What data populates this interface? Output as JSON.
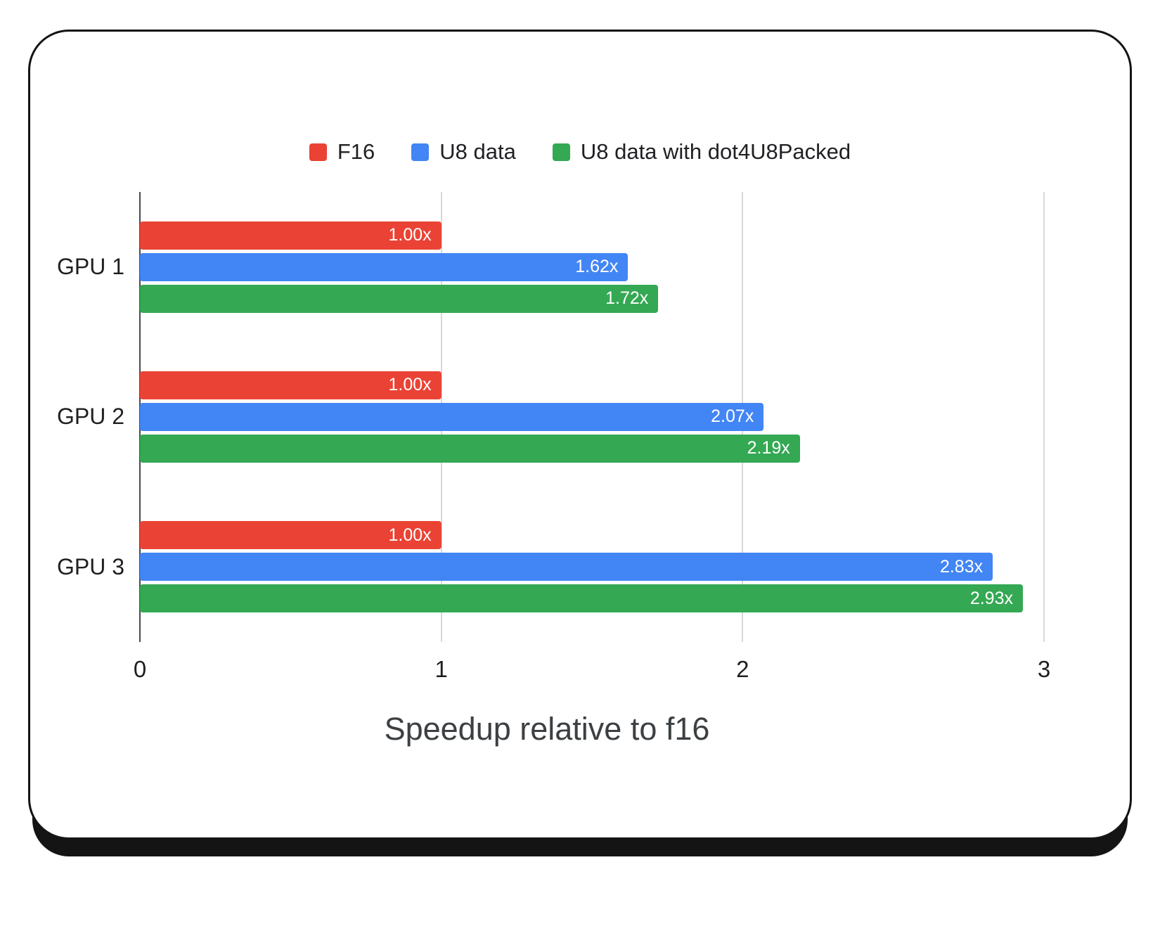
{
  "chart_data": {
    "type": "bar",
    "orientation": "horizontal",
    "title": "",
    "xlabel": "Speedup relative to f16",
    "ylabel": "",
    "categories": [
      "GPU 1",
      "GPU 2",
      "GPU 3"
    ],
    "series": [
      {
        "name": "F16",
        "color": "#EA4335",
        "values": [
          1.0,
          1.0,
          1.0
        ],
        "labels": [
          "1.00x",
          "1.00x",
          "1.00x"
        ]
      },
      {
        "name": "U8 data",
        "color": "#4285F4",
        "values": [
          1.62,
          2.07,
          2.83
        ],
        "labels": [
          "1.62x",
          "2.07x",
          "2.83x"
        ]
      },
      {
        "name": "U8 data with dot4U8Packed",
        "color": "#34A853",
        "values": [
          1.72,
          2.19,
          2.93
        ],
        "labels": [
          "1.72x",
          "2.19x",
          "2.93x"
        ]
      }
    ],
    "xlim": [
      0,
      3
    ],
    "xticks": [
      0,
      1,
      2,
      3
    ],
    "grid": true,
    "legend_position": "top",
    "value_label_color": "#ffffff",
    "gridline_color": "#d8d8d8",
    "zero_line_color": "#4a4a4a"
  }
}
